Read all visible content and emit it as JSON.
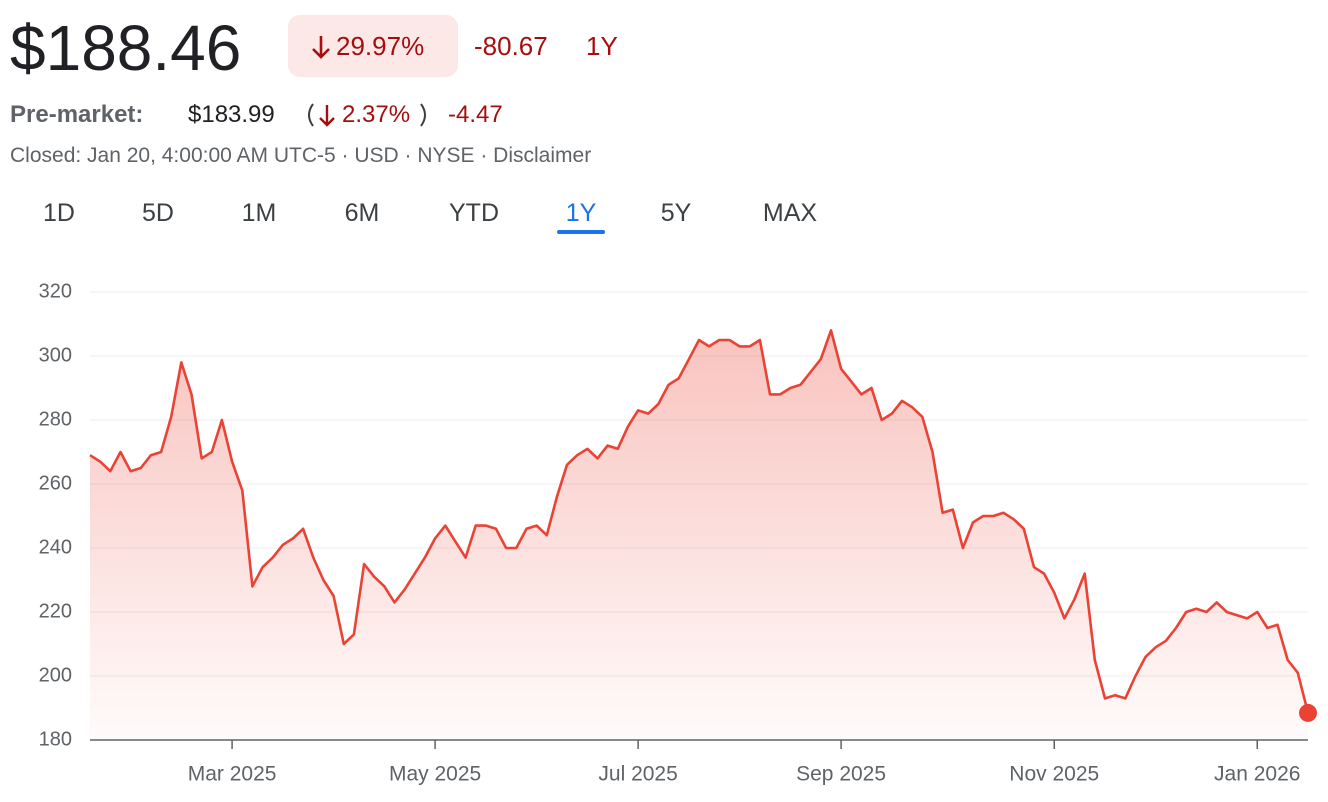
{
  "header": {
    "price": "$188.46",
    "change_pct": "29.97%",
    "change": "-80.67",
    "period": "1Y",
    "premarket_label": "Pre-market:",
    "premarket_price": "$183.99",
    "premarket_pct": "2.37%",
    "premarket_change": "-4.47",
    "status": "Closed: Jan 20, 4:00:00 AM UTC-5 · USD · NYSE · Disclaimer",
    "tabs": [
      "1D",
      "5D",
      "1M",
      "6M",
      "YTD",
      "1Y",
      "5Y",
      "MAX"
    ],
    "selected_tab": 5
  },
  "chart_data": {
    "type": "line",
    "color": "#ea4335",
    "categories": [
      null,
      null,
      null,
      null,
      null,
      null,
      null,
      null,
      null,
      null,
      null,
      null,
      null,
      null,
      "Mar 2025",
      null,
      null,
      null,
      null,
      null,
      null,
      null,
      null,
      null,
      null,
      null,
      null,
      null,
      null,
      null,
      null,
      null,
      null,
      null,
      "May 2025",
      null,
      null,
      null,
      null,
      null,
      null,
      null,
      null,
      null,
      null,
      null,
      null,
      null,
      null,
      null,
      null,
      null,
      null,
      null,
      "Jul 2025",
      null,
      null,
      null,
      null,
      null,
      null,
      null,
      null,
      null,
      null,
      null,
      null,
      null,
      null,
      null,
      null,
      null,
      null,
      null,
      "Sep 2025",
      null,
      null,
      null,
      null,
      null,
      null,
      null,
      null,
      null,
      null,
      null,
      null,
      null,
      null,
      null,
      null,
      null,
      null,
      null,
      null,
      "Nov 2025",
      null,
      null,
      null,
      null,
      null,
      null,
      null,
      null,
      null,
      null,
      null,
      null,
      null,
      null,
      null,
      null,
      null,
      null,
      null,
      "Jan 2026",
      null,
      null,
      null,
      null,
      null
    ],
    "values": [
      269,
      267,
      264,
      270,
      264,
      265,
      269,
      270,
      281,
      298,
      288,
      268,
      270,
      280,
      267,
      258,
      228,
      234,
      237,
      241,
      243,
      246,
      237,
      230,
      225,
      210,
      213,
      235,
      231,
      228,
      223,
      227,
      232,
      237,
      243,
      247,
      242,
      237,
      247,
      247,
      246,
      240,
      240,
      246,
      247,
      244,
      256,
      266,
      269,
      271,
      268,
      272,
      271,
      278,
      283,
      282,
      285,
      291,
      293,
      299,
      305,
      303,
      305,
      305,
      303,
      303,
      305,
      288,
      288,
      290,
      291,
      295,
      299,
      308,
      296,
      292,
      288,
      290,
      280,
      282,
      286,
      284,
      281,
      270,
      251,
      252,
      240,
      248,
      250,
      250,
      251,
      249,
      246,
      234,
      232,
      226,
      218,
      224,
      232,
      205,
      193,
      194,
      193,
      200,
      206,
      209,
      211,
      215,
      220,
      221,
      220,
      223,
      220,
      219,
      218,
      220,
      215,
      216,
      205,
      201,
      188.46
    ],
    "ylim": [
      180,
      320
    ],
    "yticks": [
      180,
      200,
      220,
      240,
      260,
      280,
      300,
      320
    ],
    "grid": true
  }
}
